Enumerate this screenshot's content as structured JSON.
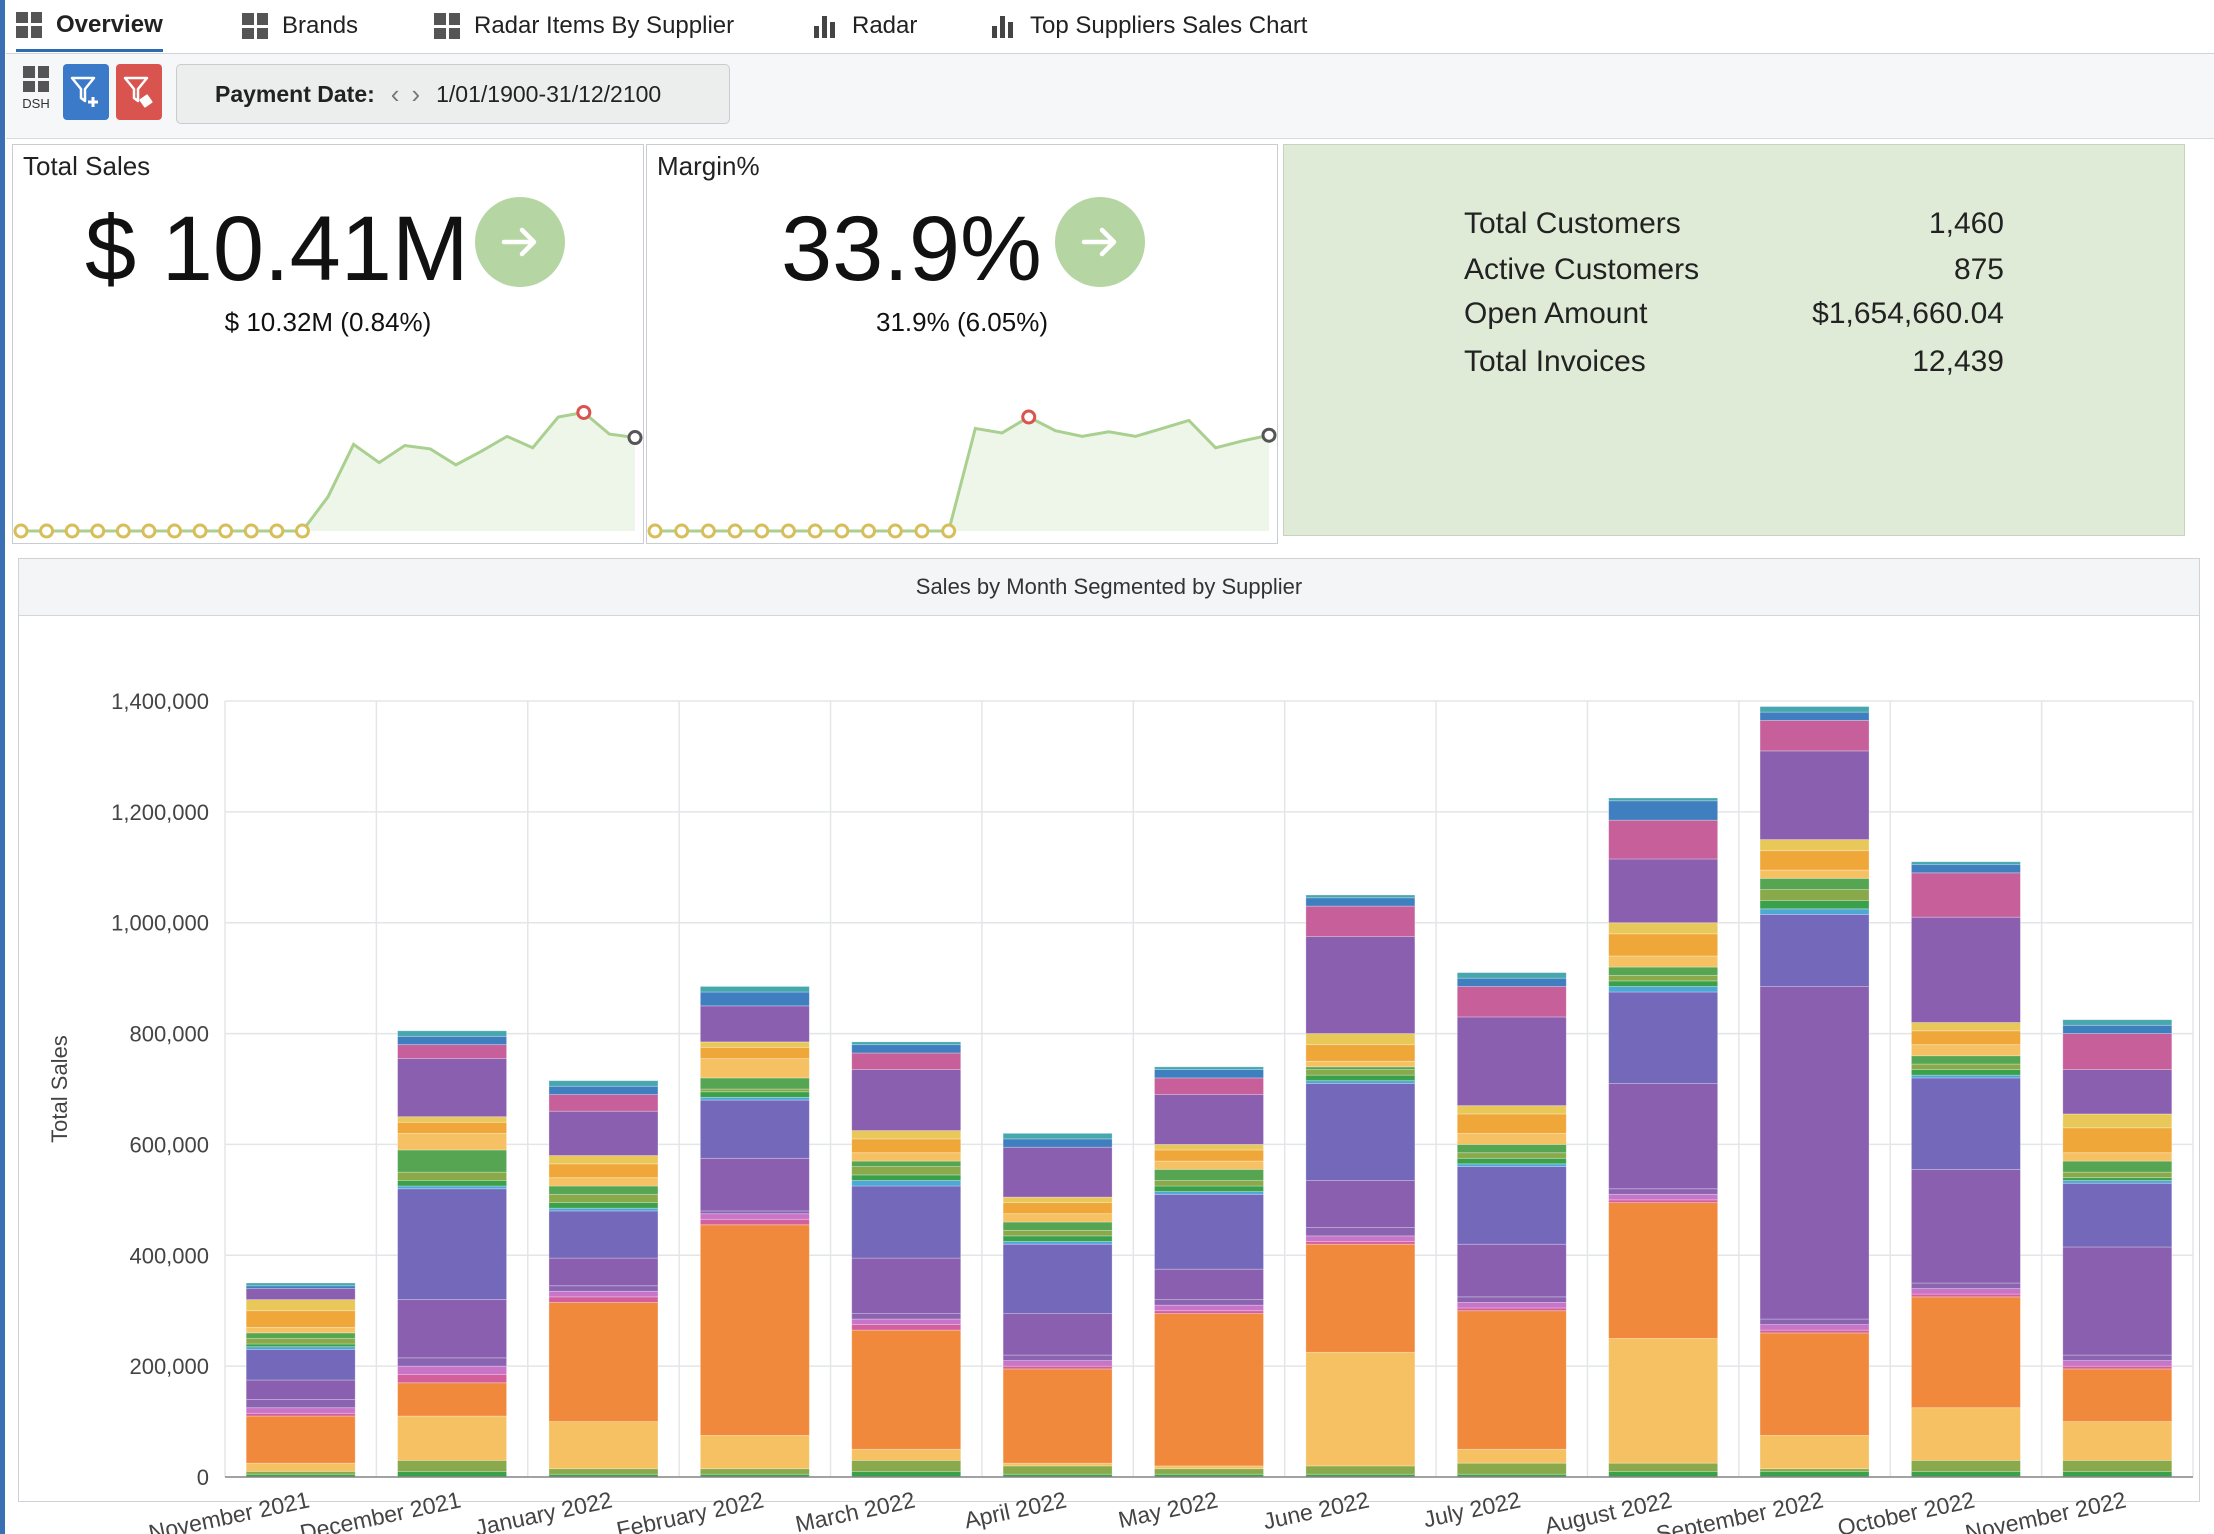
{
  "tabs": [
    {
      "label": "Overview",
      "icon": "grid-icon",
      "active": true
    },
    {
      "label": "Brands",
      "icon": "grid-icon"
    },
    {
      "label": "Radar Items By Supplier",
      "icon": "grid-icon"
    },
    {
      "label": "Radar",
      "icon": "bar-chart-icon"
    },
    {
      "label": "Top Suppliers Sales Chart",
      "icon": "bar-chart-icon"
    }
  ],
  "toolbar": {
    "dsh_label": "DSH",
    "payment_date_label": "Payment Date:",
    "payment_date_value": "1/01/1900-31/12/2100"
  },
  "kpi_total_sales": {
    "title": "Total Sales",
    "value": "$ 10.41M",
    "comparison": "$ 10.32M (0.84%)",
    "trend": [
      0,
      0,
      0,
      0,
      0,
      0,
      0,
      0,
      0,
      0,
      0,
      0,
      0.3,
      0.76,
      0.6,
      0.75,
      0.72,
      0.58,
      0.7,
      0.83,
      0.73,
      1.0,
      1.04,
      0.85,
      0.82
    ]
  },
  "kpi_margin": {
    "title": "Margin%",
    "value": "33.9%",
    "comparison": "31.9% (6.05%)",
    "trend": [
      0,
      0,
      0,
      0,
      0,
      0,
      0,
      0,
      0,
      0,
      0,
      0,
      0.9,
      0.86,
      1.0,
      0.88,
      0.83,
      0.87,
      0.83,
      0.9,
      0.97,
      0.73,
      0.79,
      0.84
    ]
  },
  "stats": [
    {
      "label": "Total Customers",
      "value": "1,460"
    },
    {
      "label": "Active Customers",
      "value": "875"
    },
    {
      "label": "Open Amount",
      "value": "$1,654,660.04"
    },
    {
      "label": "Total Invoices",
      "value": "12,439"
    }
  ],
  "chart_data": {
    "type": "bar",
    "stacked": true,
    "title": "Sales by Month Segmented by Supplier",
    "xlabel": "",
    "ylabel": "Total Sales",
    "ylim": [
      0,
      1400000
    ],
    "yticks": [
      "0",
      "200,000",
      "400,000",
      "600,000",
      "800,000",
      "1,000,000",
      "1,200,000",
      "1,400,000"
    ],
    "grid": true,
    "legend": "none",
    "categories": [
      "November 2021",
      "December 2021",
      "January 2022",
      "February 2022",
      "March 2022",
      "April 2022",
      "May 2022",
      "June 2022",
      "July 2022",
      "August 2022",
      "September 2022",
      "October 2022",
      "November 2022"
    ],
    "palette": [
      "#3aa04a",
      "#89a94b",
      "#f5c162",
      "#f0893b",
      "#d45f9d",
      "#8a63b1",
      "#7368b9",
      "#4ea8d6",
      "#55a553",
      "#e9c85a",
      "#f7a33a",
      "#c75f9a",
      "#8a5fb0",
      "#3f7fbf",
      "#46a7ae"
    ],
    "series": [
      {
        "values": [
          5000,
          10000,
          5000,
          5000,
          10000,
          5000,
          5000,
          5000,
          5000,
          10000,
          10000,
          10000,
          10000
        ]
      },
      {
        "values": [
          5000,
          20000,
          10000,
          10000,
          20000,
          15000,
          10000,
          15000,
          20000,
          15000,
          5000,
          20000,
          20000
        ]
      },
      {
        "values": [
          15000,
          80000,
          85000,
          60000,
          20000,
          5000,
          5000,
          205000,
          25000,
          225000,
          60000,
          95000,
          70000
        ]
      },
      {
        "values": [
          85000,
          60000,
          215000,
          380000,
          215000,
          170000,
          275000,
          195000,
          250000,
          245000,
          185000,
          200000,
          95000
        ]
      },
      {
        "values": [
          5000,
          15000,
          10000,
          10000,
          10000,
          5000,
          5000,
          5000,
          5000,
          5000,
          5000,
          5000,
          5000
        ]
      },
      {
        "values": [
          10000,
          15000,
          10000,
          10000,
          10000,
          10000,
          10000,
          10000,
          10000,
          10000,
          10000,
          10000,
          10000
        ]
      },
      {
        "values": [
          15000,
          15000,
          10000,
          5000,
          10000,
          10000,
          10000,
          15000,
          10000,
          10000,
          10000,
          10000,
          10000
        ]
      },
      {
        "values": [
          35000,
          105000,
          50000,
          95000,
          100000,
          75000,
          55000,
          85000,
          95000,
          190000,
          600000,
          205000,
          195000
        ]
      },
      {
        "values": [
          55000,
          200000,
          85000,
          105000,
          130000,
          125000,
          135000,
          175000,
          140000,
          165000,
          130000,
          165000,
          115000
        ]
      },
      {
        "values": [
          5000,
          5000,
          5000,
          5000,
          10000,
          5000,
          5000,
          5000,
          5000,
          10000,
          10000,
          5000,
          5000
        ]
      },
      {
        "values": [
          5000,
          10000,
          10000,
          10000,
          10000,
          10000,
          10000,
          10000,
          10000,
          10000,
          15000,
          10000,
          5000
        ]
      },
      {
        "values": [
          10000,
          15000,
          15000,
          5000,
          15000,
          10000,
          10000,
          10000,
          10000,
          10000,
          20000,
          10000,
          10000
        ]
      },
      {
        "values": [
          10000,
          40000,
          15000,
          20000,
          10000,
          15000,
          20000,
          5000,
          15000,
          15000,
          20000,
          15000,
          20000
        ]
      },
      {
        "values": [
          10000,
          30000,
          15000,
          35000,
          15000,
          15000,
          15000,
          10000,
          20000,
          20000,
          15000,
          20000,
          15000
        ]
      },
      {
        "values": [
          30000,
          20000,
          25000,
          20000,
          25000,
          20000,
          20000,
          30000,
          35000,
          40000,
          35000,
          25000,
          45000
        ]
      },
      {
        "values": [
          20000,
          10000,
          15000,
          10000,
          15000,
          10000,
          10000,
          20000,
          15000,
          20000,
          20000,
          15000,
          25000
        ]
      },
      {
        "values": [
          20000,
          105000,
          80000,
          65000,
          110000,
          90000,
          90000,
          175000,
          160000,
          115000,
          160000,
          190000,
          80000
        ]
      },
      {
        "values": [
          0,
          25000,
          30000,
          0,
          30000,
          0,
          30000,
          55000,
          55000,
          70000,
          55000,
          80000,
          65000
        ]
      },
      {
        "values": [
          5000,
          15000,
          15000,
          25000,
          15000,
          15000,
          15000,
          15000,
          15000,
          35000,
          15000,
          15000,
          15000
        ]
      },
      {
        "values": [
          5000,
          10000,
          10000,
          10000,
          5000,
          10000,
          5000,
          5000,
          10000,
          5000,
          10000,
          5000,
          10000
        ]
      }
    ],
    "series_colors": [
      "#3aa04a",
      "#89a94b",
      "#f5c162",
      "#f0893b",
      "#d45f9d",
      "#c874c8",
      "#8a63b1",
      "#8a5fb0",
      "#7368b9",
      "#4ea8d6",
      "#3aa04a",
      "#89a94b",
      "#55a553",
      "#f5c162",
      "#f0a73a",
      "#e9c85a",
      "#8a5fb0",
      "#c75f9a",
      "#3f7fbf",
      "#46a7ae"
    ]
  }
}
